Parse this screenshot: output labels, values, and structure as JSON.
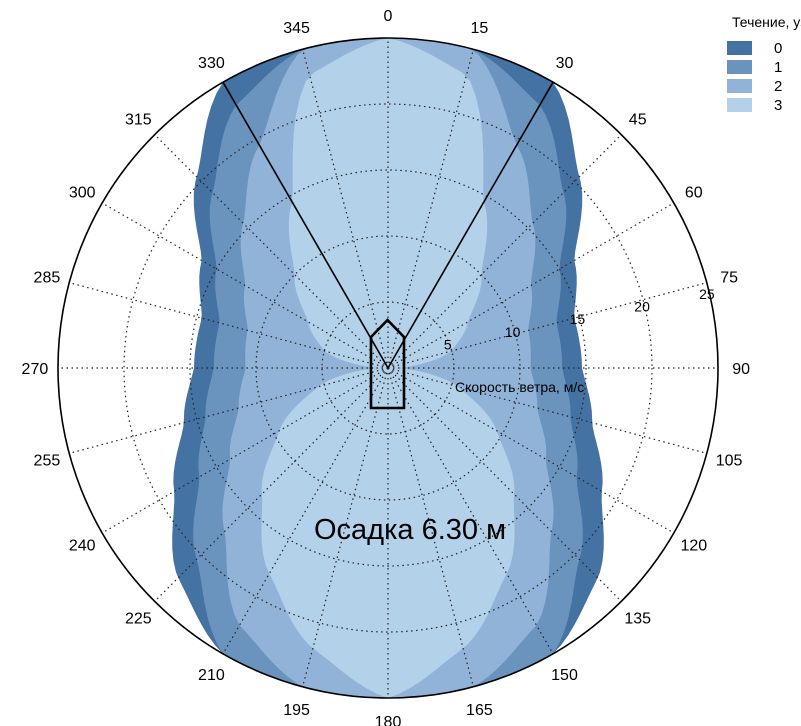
{
  "chart_data": {
    "type": "area",
    "subtype": "polar",
    "angle_unit": "degrees",
    "angle_ticks": [
      0,
      15,
      30,
      45,
      60,
      75,
      90,
      105,
      120,
      135,
      150,
      165,
      180,
      195,
      210,
      225,
      240,
      255,
      270,
      285,
      300,
      315,
      330,
      345
    ],
    "radial_ticks": [
      5,
      10,
      15,
      20,
      25
    ],
    "rlim": [
      0,
      25
    ],
    "radial_axis_label": "Скорость ветра, м/с",
    "annotation": "Осадка 6.30 м",
    "legend": {
      "title": "Течение, уз",
      "placement": "top-right"
    },
    "sector_lines_deg": [
      330,
      30
    ],
    "grid": true,
    "series": [
      {
        "name": "0",
        "color": "#4472a2",
        "angles": [
          0,
          15,
          30,
          45,
          60,
          75,
          90,
          105,
          120,
          135,
          150,
          165,
          180
        ],
        "r": [
          25,
          25,
          25,
          20.5,
          16.3,
          14.6,
          14.7,
          16,
          18.7,
          22.5,
          25,
          25,
          25
        ]
      },
      {
        "name": "1",
        "color": "#6a93be",
        "angles": [
          0,
          15,
          30,
          45,
          60,
          75,
          90,
          105,
          120,
          135,
          150,
          165,
          180
        ],
        "r": [
          25,
          25,
          23,
          18.8,
          15,
          13.2,
          13.2,
          14.3,
          16.5,
          20.5,
          25,
          25,
          25
        ]
      },
      {
        "name": "2",
        "color": "#91b3d7",
        "angles": [
          0,
          15,
          30,
          45,
          60,
          75,
          90,
          105,
          120,
          135,
          150,
          165,
          180
        ],
        "r": [
          25,
          25,
          19.5,
          15.5,
          12.5,
          11,
          10.8,
          11.7,
          13.8,
          17.5,
          22.5,
          25,
          25
        ]
      },
      {
        "name": "3",
        "color": "#b4d1ea",
        "angles": [
          0,
          15,
          30,
          45,
          60,
          75,
          90,
          105,
          120,
          135,
          150,
          165,
          180
        ],
        "r": [
          25,
          23,
          14.5,
          10,
          7,
          5,
          0.5,
          5.5,
          9.5,
          13.5,
          18,
          22,
          25
        ]
      }
    ]
  }
}
